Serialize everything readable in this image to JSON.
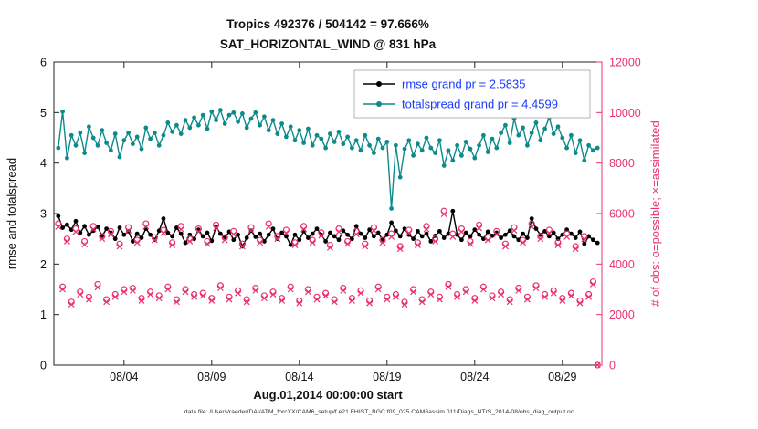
{
  "colors": {
    "rmse": "#000000",
    "totalspread": "#0d8a8a",
    "obs_pink": "#e8336e",
    "legend_text": "#1a3aff",
    "axis": "#222222",
    "tick_label": "#111111"
  },
  "chart_data": {
    "type": "line",
    "title_line1": "Tropics 492376 / 504142 = 97.666%",
    "title_line2": "SAT_HORIZONTAL_WIND @ 831 hPa",
    "xlabel": "Aug.01,2014 00:00:00 start",
    "ylabel_left": "rmse and totalspread",
    "ylabel_right": "# of obs: o=possible; ×=assimilated",
    "caption": "data file: /Users/raeder/DAI/ATM_forcXX/CAM6_setup/f.e21.FHIST_BGC.f09_025.CAM6assim.011/Diags_NTrS_2014-08/obs_diag_output.nc",
    "x_range": [
      0,
      31.25
    ],
    "y_left_range": [
      0,
      6
    ],
    "y_right_range": [
      0,
      12000
    ],
    "x_ticks": [
      {
        "value": 4,
        "label": "08/04"
      },
      {
        "value": 9,
        "label": "08/09"
      },
      {
        "value": 14,
        "label": "08/14"
      },
      {
        "value": 19,
        "label": "08/19"
      },
      {
        "value": 24,
        "label": "08/24"
      },
      {
        "value": 29,
        "label": "08/29"
      }
    ],
    "y_left_ticks": [
      0,
      1,
      2,
      3,
      4,
      5,
      6
    ],
    "y_right_ticks": [
      0,
      2000,
      4000,
      6000,
      8000,
      10000,
      12000
    ],
    "x": {
      "start": 0.25,
      "step": 0.25,
      "count": 124
    },
    "series": [
      {
        "name": "rmse",
        "legend": "rmse grand pr = 2.5835",
        "color": "#000000",
        "axis": "left",
        "marker": "dot",
        "line": true,
        "values": [
          2.95,
          2.72,
          2.78,
          2.68,
          2.85,
          2.62,
          2.75,
          2.58,
          2.66,
          2.74,
          2.55,
          2.7,
          2.62,
          2.5,
          2.72,
          2.58,
          2.65,
          2.45,
          2.6,
          2.52,
          2.7,
          2.58,
          2.48,
          2.66,
          2.9,
          2.62,
          2.55,
          2.72,
          2.6,
          2.42,
          2.58,
          2.5,
          2.68,
          2.55,
          2.62,
          2.46,
          2.74,
          2.6,
          2.52,
          2.64,
          2.48,
          2.58,
          2.35,
          2.52,
          2.66,
          2.54,
          2.6,
          2.45,
          2.58,
          2.7,
          2.5,
          2.62,
          2.55,
          2.38,
          2.58,
          2.48,
          2.65,
          2.52,
          2.6,
          2.7,
          2.58,
          2.45,
          2.62,
          2.55,
          2.48,
          2.66,
          2.58,
          2.5,
          2.75,
          2.6,
          2.52,
          2.68,
          2.55,
          2.62,
          2.48,
          2.58,
          2.82,
          2.66,
          2.55,
          2.7,
          2.58,
          2.5,
          2.65,
          2.55,
          2.6,
          2.45,
          2.56,
          2.65,
          2.52,
          2.6,
          3.05,
          2.58,
          2.48,
          2.62,
          2.55,
          2.68,
          2.58,
          2.5,
          2.64,
          2.56,
          2.62,
          2.52,
          2.58,
          2.66,
          2.55,
          2.48,
          2.6,
          2.52,
          2.9,
          2.7,
          2.58,
          2.65,
          2.55,
          2.62,
          2.5,
          2.58,
          2.68,
          2.6,
          2.52,
          2.64,
          2.4,
          2.55,
          2.48,
          2.42
        ]
      },
      {
        "name": "totalspread",
        "legend": "totalspread grand pr = 4.4599",
        "color": "#0d8a8a",
        "axis": "left",
        "marker": "dot",
        "line": true,
        "values": [
          4.3,
          5.02,
          4.1,
          4.55,
          4.35,
          4.6,
          4.2,
          4.72,
          4.5,
          4.35,
          4.65,
          4.4,
          4.25,
          4.58,
          4.12,
          4.45,
          4.6,
          4.38,
          4.52,
          4.28,
          4.7,
          4.48,
          4.6,
          4.35,
          4.55,
          4.8,
          4.62,
          4.75,
          4.58,
          4.85,
          4.7,
          4.9,
          4.75,
          4.95,
          4.68,
          5.02,
          4.85,
          5.05,
          4.78,
          4.95,
          5.0,
          4.82,
          4.98,
          4.7,
          4.88,
          5.0,
          4.75,
          4.92,
          4.65,
          4.85,
          4.58,
          4.78,
          4.52,
          4.72,
          4.45,
          4.65,
          4.4,
          4.68,
          4.35,
          4.55,
          4.48,
          4.3,
          4.58,
          4.42,
          4.62,
          4.38,
          4.52,
          4.3,
          4.45,
          4.25,
          4.55,
          4.35,
          4.2,
          4.48,
          4.3,
          4.42,
          3.1,
          4.35,
          3.72,
          4.28,
          4.45,
          4.15,
          4.38,
          4.25,
          4.5,
          4.3,
          4.2,
          4.45,
          3.95,
          4.25,
          4.05,
          4.35,
          4.15,
          4.42,
          4.28,
          4.1,
          4.35,
          4.55,
          4.22,
          4.48,
          4.3,
          4.6,
          4.75,
          4.4,
          4.88,
          4.55,
          4.7,
          4.35,
          4.6,
          4.8,
          4.45,
          4.68,
          4.9,
          4.58,
          4.72,
          4.5,
          4.3,
          4.55,
          4.2,
          4.45,
          4.05,
          4.35,
          4.25,
          4.3
        ]
      },
      {
        "name": "possible",
        "legend": "",
        "color": "#e8336e",
        "axis": "right",
        "marker": "o",
        "line": false,
        "values": [
          5600,
          3100,
          5000,
          2500,
          5400,
          2900,
          4900,
          2700,
          5500,
          3200,
          5100,
          2600,
          5300,
          2800,
          4800,
          3000,
          5450,
          3050,
          4950,
          2650,
          5600,
          2900,
          5050,
          2750,
          5350,
          3100,
          4850,
          2600,
          5500,
          3000,
          5000,
          2800,
          5400,
          2850,
          4900,
          2650,
          5550,
          3150,
          5050,
          2700,
          5300,
          2950,
          4800,
          2600,
          5450,
          3050,
          4950,
          2750,
          5600,
          2900,
          5100,
          2650,
          5350,
          3100,
          4850,
          2550,
          5500,
          3000,
          4950,
          2700,
          5250,
          2850,
          4750,
          2600,
          5400,
          3050,
          4900,
          2650,
          5300,
          2950,
          4800,
          2550,
          5450,
          3100,
          4950,
          2700,
          5200,
          2800,
          4700,
          2500,
          5350,
          3000,
          4850,
          2600,
          5500,
          2900,
          5000,
          2700,
          6100,
          3200,
          5200,
          2800,
          5400,
          3000,
          4900,
          2650,
          5550,
          3100,
          5050,
          2750,
          5300,
          2900,
          4800,
          2600,
          5450,
          3050,
          4950,
          2700,
          5600,
          3150,
          5100,
          2800,
          5350,
          2950,
          4850,
          2650,
          5200,
          2850,
          4700,
          2550,
          5100,
          2800,
          3300,
          0
        ]
      },
      {
        "name": "assimilated",
        "legend": "",
        "color": "#e8336e",
        "axis": "right",
        "marker": "x",
        "line": false,
        "values": [
          5480,
          3000,
          4900,
          2400,
          5280,
          2800,
          4780,
          2600,
          5380,
          3080,
          5000,
          2500,
          5180,
          2700,
          4700,
          2900,
          5330,
          2950,
          4850,
          2550,
          5480,
          2800,
          4950,
          2650,
          5230,
          3000,
          4750,
          2500,
          5380,
          2900,
          4900,
          2700,
          5280,
          2750,
          4800,
          2550,
          5430,
          3050,
          4950,
          2600,
          5180,
          2850,
          4700,
          2500,
          5330,
          2950,
          4850,
          2650,
          5480,
          2800,
          5000,
          2550,
          5230,
          3000,
          4750,
          2450,
          5380,
          2900,
          4850,
          2600,
          5130,
          2750,
          4650,
          2500,
          5280,
          2950,
          4800,
          2550,
          5180,
          2850,
          4700,
          2450,
          5330,
          3000,
          4850,
          2600,
          5080,
          2700,
          4600,
          2400,
          5230,
          2900,
          4750,
          2500,
          5380,
          2800,
          4900,
          2600,
          5980,
          3100,
          5080,
          2700,
          5280,
          2900,
          4800,
          2550,
          5430,
          3000,
          4950,
          2650,
          5180,
          2800,
          4700,
          2500,
          5330,
          2950,
          4850,
          2600,
          5480,
          3050,
          5000,
          2700,
          5230,
          2850,
          4750,
          2550,
          5080,
          2750,
          4600,
          2450,
          4980,
          2700,
          3200,
          0
        ]
      }
    ]
  }
}
